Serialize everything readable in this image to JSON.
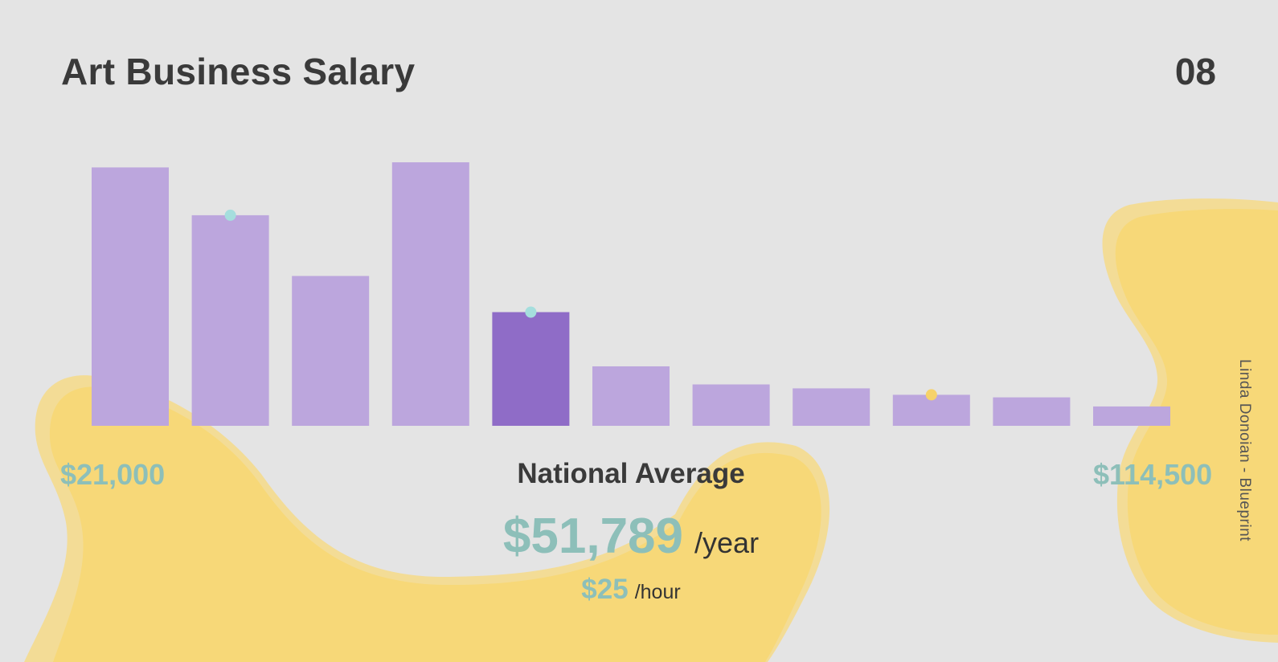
{
  "header": {
    "title": "Art Business Salary",
    "page_number": "08"
  },
  "credit": "Linda Donoian - Blueprint",
  "summary": {
    "range_min": "$21,000",
    "range_max": "$114,500",
    "average_label": "National Average",
    "yearly_amount": "$51,789",
    "yearly_unit": "/year",
    "hourly_amount": "$25",
    "hourly_unit": "/hour"
  },
  "colors": {
    "background": "#e4e4e4",
    "bar": "#bca6dd",
    "bar_highlight": "#8f6cc7",
    "blob": "#f7d878",
    "blob_edge": "#f3dc96",
    "marker_teal": "#a5dedd",
    "marker_yellow": "#f6d26a",
    "accent_text": "#8dbfb9"
  },
  "chart_data": {
    "type": "bar",
    "title": "",
    "xlabel": "",
    "ylabel": "",
    "values": [
      100,
      81.5,
      58,
      102,
      44,
      23,
      16,
      14.5,
      12,
      11,
      7.5
    ],
    "highlight_index": 4,
    "markers": [
      {
        "index": 1,
        "color": "teal"
      },
      {
        "index": 4,
        "color": "teal"
      },
      {
        "index": 8,
        "color": "yellow"
      }
    ],
    "ylim": [
      0,
      102
    ],
    "grid": false,
    "legend": "none"
  }
}
